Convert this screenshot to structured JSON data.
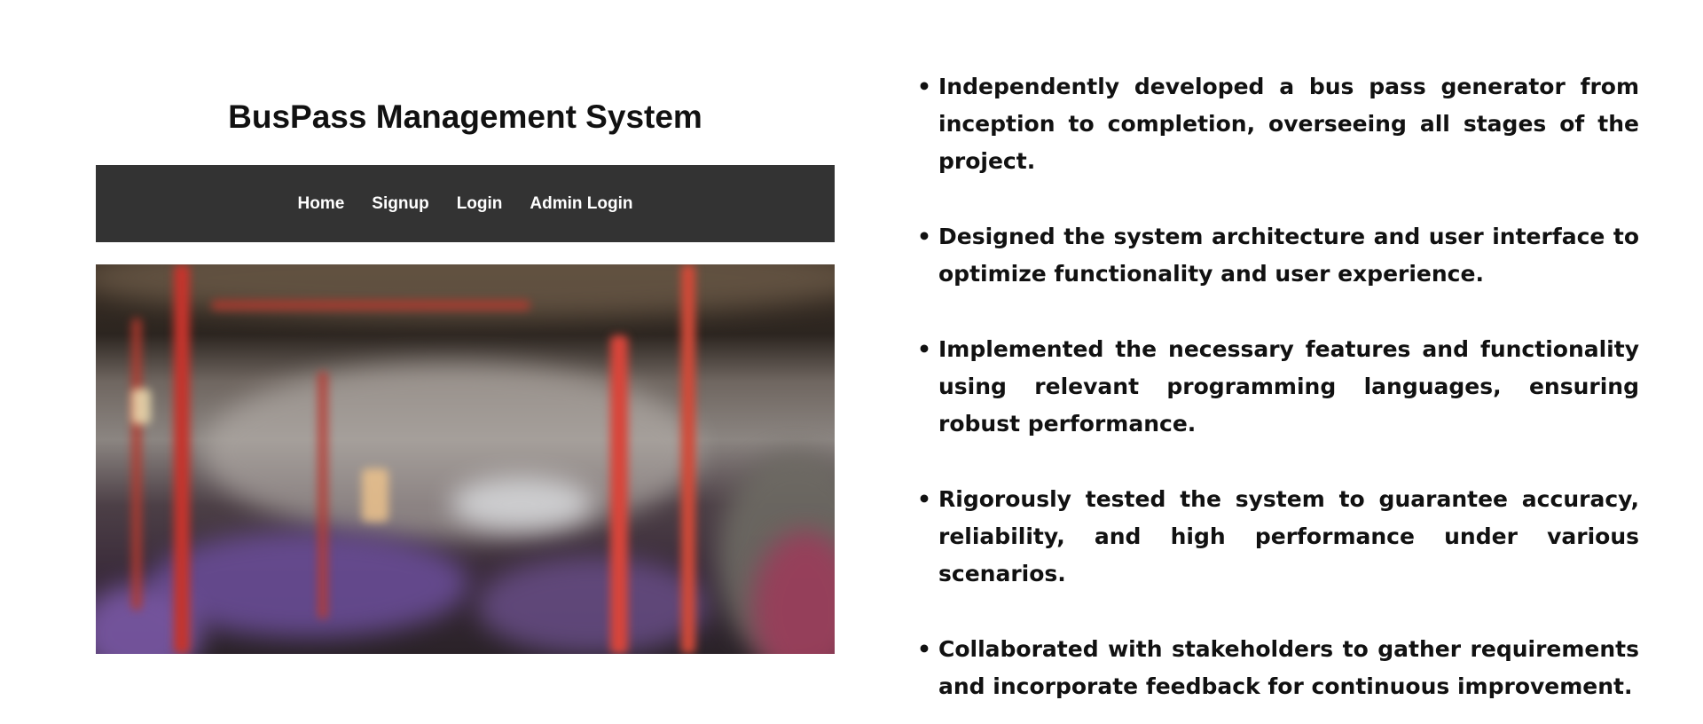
{
  "app": {
    "title": "BusPass Management System",
    "nav": [
      "Home",
      "Signup",
      "Login",
      "Admin Login"
    ],
    "nav_bg": "#333333",
    "hero_image": "blurred-bus-interior-photo"
  },
  "bullets": [
    "Independently developed a bus pass generator from inception to completion, overseeing all stages of the project.",
    "Designed the system architecture and user interface to optimize functionality and user experience.",
    "Implemented the necessary features and functionality using relevant programming languages, ensuring robust performance.",
    "Rigorously tested the system to guarantee accuracy, reliability, and high performance under various scenarios.",
    "Collaborated with stakeholders to gather requirements and incorporate feedback for continuous improvement."
  ]
}
